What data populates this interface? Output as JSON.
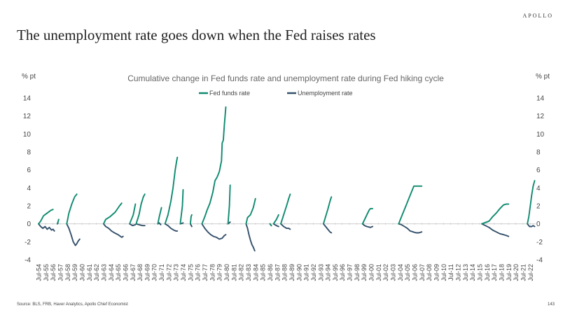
{
  "brand": "APOLLO",
  "headline": "The unemployment rate goes down when the Fed raises rates",
  "source": "Source: BLS, FRB, Haver Analytics, Apollo Chief Economist",
  "page_number": "143",
  "colors": {
    "fed_funds": "#0e8a6f",
    "unemployment": "#33506b"
  },
  "chart_data": {
    "type": "line",
    "title": "Cumulative change in Fed funds rate and unemployment rate during Fed hiking cycle",
    "ylabel_left": "% pt",
    "ylabel_right": "% pt",
    "ylim": [
      -4,
      14
    ],
    "yticks": [
      -4,
      -2,
      0,
      2,
      4,
      6,
      8,
      10,
      12,
      14
    ],
    "legend_position": "top",
    "grid": false,
    "xticks": [
      "Jul-54",
      "Jul-55",
      "Jul-56",
      "Jul-57",
      "Jul-58",
      "Jul-59",
      "Jul-60",
      "Jul-61",
      "Jul-62",
      "Jul-63",
      "Jul-64",
      "Jul-65",
      "Jul-66",
      "Jul-67",
      "Jul-68",
      "Jul-69",
      "Jul-70",
      "Jul-71",
      "Jul-72",
      "Jul-73",
      "Jul-74",
      "Jul-75",
      "Jul-76",
      "Jul-77",
      "Jul-78",
      "Jul-79",
      "Jul-80",
      "Jul-81",
      "Jul-82",
      "Jul-83",
      "Jul-84",
      "Jul-85",
      "Jul-86",
      "Jul-87",
      "Jul-88",
      "Jul-89",
      "Jul-90",
      "Jul-91",
      "Jul-92",
      "Jul-93",
      "Jul-94",
      "Jul-95",
      "Jul-96",
      "Jul-97",
      "Jul-98",
      "Jul-99",
      "Jul-00",
      "Jul-01",
      "Jul-02",
      "Jul-03",
      "Jul-04",
      "Jul-05",
      "Jul-06",
      "Jul-07",
      "Jul-08",
      "Jul-09",
      "Jul-10",
      "Jul-11",
      "Jul-12",
      "Jul-13",
      "Jul-14",
      "Jul-15",
      "Jul-16",
      "Jul-17",
      "Jul-18",
      "Jul-19",
      "Jul-20",
      "Jul-21",
      "Jul-22"
    ],
    "series": [
      {
        "name": "Fed funds rate",
        "color": "#0e8a6f",
        "segments": [
          [
            [
              1954.6,
              0
            ],
            [
              1954.9,
              0.3
            ],
            [
              1955.3,
              0.9
            ],
            [
              1955.8,
              1.2
            ],
            [
              1956.3,
              1.5
            ],
            [
              1956.6,
              1.6
            ]
          ],
          [
            [
              1957.2,
              0
            ],
            [
              1957.4,
              0.5
            ]
          ],
          [
            [
              1958.5,
              0
            ],
            [
              1958.8,
              1.2
            ],
            [
              1959.2,
              2.2
            ],
            [
              1959.6,
              3.0
            ],
            [
              1959.9,
              3.3
            ]
          ],
          [
            [
              1963.6,
              0
            ],
            [
              1963.9,
              0.5
            ],
            [
              1964.5,
              0.8
            ],
            [
              1965.2,
              1.3
            ],
            [
              1965.8,
              2.0
            ],
            [
              1966.1,
              2.3
            ]
          ],
          [
            [
              1967.2,
              0
            ],
            [
              1967.7,
              1.0
            ],
            [
              1968.0,
              2.2
            ]
          ],
          [
            [
              1968.1,
              0
            ],
            [
              1968.5,
              1.0
            ],
            [
              1968.8,
              2.2
            ],
            [
              1969.1,
              3.0
            ],
            [
              1969.3,
              3.3
            ]
          ],
          [
            [
              1971.1,
              0
            ],
            [
              1971.3,
              0.8
            ],
            [
              1971.6,
              1.8
            ]
          ],
          [
            [
              1972.1,
              0
            ],
            [
              1972.5,
              1.0
            ],
            [
              1972.9,
              2.5
            ],
            [
              1973.2,
              4.0
            ],
            [
              1973.5,
              6.0
            ],
            [
              1973.7,
              7.0
            ],
            [
              1973.8,
              7.4
            ]
          ],
          [
            [
              1974.2,
              0
            ],
            [
              1974.5,
              2.0
            ],
            [
              1974.6,
              3.8
            ]
          ],
          [
            [
              1975.6,
              0
            ],
            [
              1975.7,
              0.8
            ],
            [
              1975.8,
              1.0
            ]
          ],
          [
            [
              1977.2,
              0
            ],
            [
              1977.6,
              0.8
            ],
            [
              1977.9,
              1.5
            ],
            [
              1978.3,
              2.3
            ],
            [
              1978.7,
              3.5
            ],
            [
              1979.0,
              4.8
            ],
            [
              1979.3,
              5.2
            ],
            [
              1979.6,
              5.8
            ],
            [
              1979.9,
              7.0
            ],
            [
              1980.0,
              9.0
            ],
            [
              1980.15,
              9.3
            ],
            [
              1980.3,
              11.0
            ],
            [
              1980.5,
              13.0
            ]
          ],
          [
            [
              1980.8,
              0
            ],
            [
              1981.0,
              2.0
            ],
            [
              1981.1,
              4.3
            ]
          ],
          [
            [
              1983.3,
              0
            ],
            [
              1983.5,
              0.7
            ],
            [
              1983.9,
              1.0
            ],
            [
              1984.3,
              1.8
            ],
            [
              1984.6,
              2.8
            ]
          ],
          [
            [
              1986.6,
              0
            ],
            [
              1986.8,
              -0.2
            ]
          ],
          [
            [
              1987.1,
              0
            ],
            [
              1987.5,
              0.5
            ],
            [
              1987.8,
              1.0
            ]
          ],
          [
            [
              1988.1,
              0
            ],
            [
              1988.5,
              1.0
            ],
            [
              1988.9,
              2.0
            ],
            [
              1989.2,
              2.8
            ],
            [
              1989.4,
              3.3
            ]
          ],
          [
            [
              1994.0,
              0
            ],
            [
              1994.3,
              0.8
            ],
            [
              1994.6,
              1.6
            ],
            [
              1994.9,
              2.5
            ],
            [
              1995.1,
              3.0
            ]
          ],
          [
            [
              1999.4,
              0
            ],
            [
              1999.7,
              0.5
            ],
            [
              2000.0,
              1.0
            ],
            [
              2000.3,
              1.5
            ],
            [
              2000.5,
              1.7
            ],
            [
              2000.8,
              1.7
            ]
          ],
          [
            [
              2004.4,
              0
            ],
            [
              2004.8,
              0.8
            ],
            [
              2005.3,
              1.8
            ],
            [
              2005.8,
              2.8
            ],
            [
              2006.2,
              3.6
            ],
            [
              2006.5,
              4.2
            ],
            [
              2007.0,
              4.2
            ],
            [
              2007.6,
              4.2
            ]
          ],
          [
            [
              2015.9,
              0
            ],
            [
              2016.9,
              0.3
            ],
            [
              2017.4,
              0.8
            ],
            [
              2017.9,
              1.2
            ],
            [
              2018.4,
              1.7
            ],
            [
              2018.9,
              2.1
            ],
            [
              2019.3,
              2.2
            ],
            [
              2019.6,
              2.2
            ]
          ],
          [
            [
              2022.2,
              0
            ],
            [
              2022.4,
              0.8
            ],
            [
              2022.6,
              2.0
            ],
            [
              2022.8,
              3.2
            ],
            [
              2023.0,
              4.2
            ],
            [
              2023.2,
              4.8
            ]
          ]
        ]
      },
      {
        "name": "Unemployment rate",
        "color": "#33506b",
        "segments": [
          [
            [
              1954.6,
              0
            ],
            [
              1954.9,
              -0.3
            ],
            [
              1955.2,
              -0.5
            ],
            [
              1955.5,
              -0.3
            ],
            [
              1955.8,
              -0.6
            ],
            [
              1956.1,
              -0.4
            ],
            [
              1956.4,
              -0.7
            ],
            [
              1956.6,
              -0.6
            ],
            [
              1956.8,
              -0.8
            ]
          ],
          [
            [
              1957.2,
              0
            ],
            [
              1957.3,
              0.1
            ]
          ],
          [
            [
              1958.5,
              0
            ],
            [
              1958.8,
              -0.5
            ],
            [
              1959.1,
              -1.2
            ],
            [
              1959.4,
              -2.0
            ],
            [
              1959.7,
              -2.4
            ],
            [
              1959.9,
              -2.2
            ],
            [
              1960.1,
              -1.9
            ],
            [
              1960.3,
              -1.7
            ]
          ],
          [
            [
              1963.6,
              0
            ],
            [
              1963.9,
              -0.3
            ],
            [
              1964.3,
              -0.5
            ],
            [
              1964.7,
              -0.8
            ],
            [
              1965.1,
              -1.0
            ],
            [
              1965.6,
              -1.2
            ],
            [
              1966.1,
              -1.5
            ],
            [
              1966.3,
              -1.4
            ]
          ],
          [
            [
              1967.2,
              0
            ],
            [
              1967.6,
              -0.2
            ],
            [
              1968.0,
              -0.1
            ]
          ],
          [
            [
              1968.1,
              0
            ],
            [
              1968.5,
              -0.1
            ],
            [
              1969.0,
              -0.2
            ],
            [
              1969.3,
              -0.2
            ]
          ],
          [
            [
              1971.1,
              0
            ],
            [
              1971.3,
              0.1
            ],
            [
              1971.5,
              -0.1
            ]
          ],
          [
            [
              1972.1,
              0
            ],
            [
              1972.5,
              -0.2
            ],
            [
              1972.9,
              -0.5
            ],
            [
              1973.3,
              -0.7
            ],
            [
              1973.6,
              -0.8
            ],
            [
              1973.8,
              -0.8
            ]
          ],
          [
            [
              1974.2,
              0
            ],
            [
              1974.6,
              0.1
            ]
          ],
          [
            [
              1975.6,
              0
            ],
            [
              1975.8,
              -0.3
            ]
          ],
          [
            [
              1977.2,
              0
            ],
            [
              1977.6,
              -0.5
            ],
            [
              1978.0,
              -0.9
            ],
            [
              1978.4,
              -1.2
            ],
            [
              1978.8,
              -1.4
            ],
            [
              1979.2,
              -1.5
            ],
            [
              1979.6,
              -1.7
            ],
            [
              1980.0,
              -1.6
            ],
            [
              1980.3,
              -1.3
            ],
            [
              1980.5,
              -1.2
            ]
          ],
          [
            [
              1980.8,
              0
            ],
            [
              1981.1,
              0.2
            ]
          ],
          [
            [
              1983.3,
              0
            ],
            [
              1983.5,
              -0.5
            ],
            [
              1983.7,
              -1.2
            ],
            [
              1983.9,
              -1.8
            ],
            [
              1984.1,
              -2.3
            ],
            [
              1984.3,
              -2.6
            ],
            [
              1984.5,
              -3.0
            ]
          ],
          [
            [
              1986.6,
              0
            ],
            [
              1986.8,
              -0.2
            ]
          ],
          [
            [
              1987.1,
              0
            ],
            [
              1987.5,
              -0.2
            ],
            [
              1987.8,
              -0.3
            ]
          ],
          [
            [
              1988.1,
              0
            ],
            [
              1988.5,
              -0.3
            ],
            [
              1988.9,
              -0.5
            ],
            [
              1989.2,
              -0.5
            ],
            [
              1989.4,
              -0.6
            ]
          ],
          [
            [
              1994.0,
              0
            ],
            [
              1994.3,
              -0.3
            ],
            [
              1994.6,
              -0.6
            ],
            [
              1994.9,
              -0.9
            ],
            [
              1995.1,
              -1.0
            ]
          ],
          [
            [
              1999.4,
              0
            ],
            [
              1999.7,
              -0.2
            ],
            [
              2000.0,
              -0.3
            ],
            [
              2000.5,
              -0.4
            ],
            [
              2000.8,
              -0.3
            ]
          ],
          [
            [
              2004.4,
              0
            ],
            [
              2004.8,
              -0.1
            ],
            [
              2005.2,
              -0.3
            ],
            [
              2005.6,
              -0.5
            ],
            [
              2006.0,
              -0.8
            ],
            [
              2006.4,
              -0.9
            ],
            [
              2006.8,
              -1.0
            ],
            [
              2007.2,
              -1.0
            ],
            [
              2007.6,
              -0.9
            ]
          ],
          [
            [
              2015.9,
              0
            ],
            [
              2016.4,
              -0.2
            ],
            [
              2016.9,
              -0.4
            ],
            [
              2017.4,
              -0.7
            ],
            [
              2017.9,
              -0.9
            ],
            [
              2018.4,
              -1.1
            ],
            [
              2018.9,
              -1.2
            ],
            [
              2019.3,
              -1.3
            ],
            [
              2019.6,
              -1.4
            ]
          ],
          [
            [
              2022.2,
              0
            ],
            [
              2022.5,
              -0.3
            ],
            [
              2022.8,
              -0.3
            ],
            [
              2023.0,
              -0.2
            ],
            [
              2023.2,
              -0.3
            ]
          ]
        ]
      }
    ]
  }
}
